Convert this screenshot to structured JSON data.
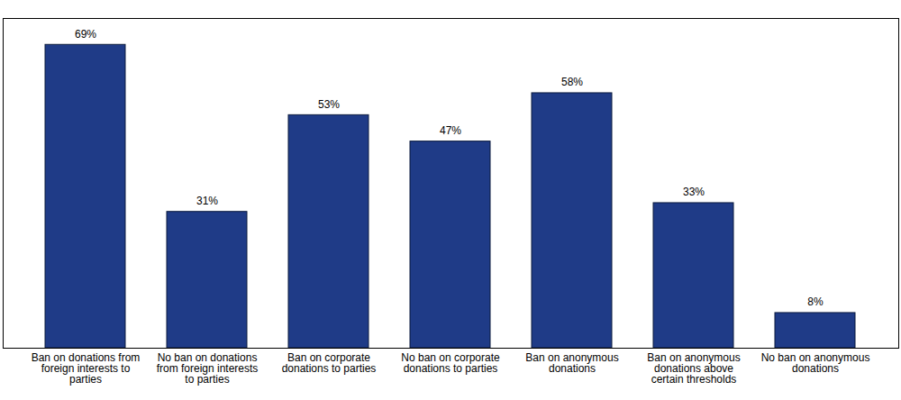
{
  "chart_data": {
    "type": "bar",
    "categories": [
      "Ban on donations from foreign interests to parties",
      "No ban on donations from foreign interests to parties",
      "Ban on corporate donations to parties",
      "No ban on corporate donations to parties",
      "Ban on anonymous donations",
      "Ban on anonymous donations above certain thresholds",
      "No ban on anonymous donations"
    ],
    "values": [
      69,
      31,
      53,
      47,
      58,
      33,
      8
    ],
    "value_labels": [
      "69%",
      "31%",
      "53%",
      "47%",
      "58%",
      "33%",
      "8%"
    ],
    "color": "#1f3b87",
    "ylim": [
      0,
      75
    ],
    "data_labels": true,
    "tick_labels": "x"
  }
}
